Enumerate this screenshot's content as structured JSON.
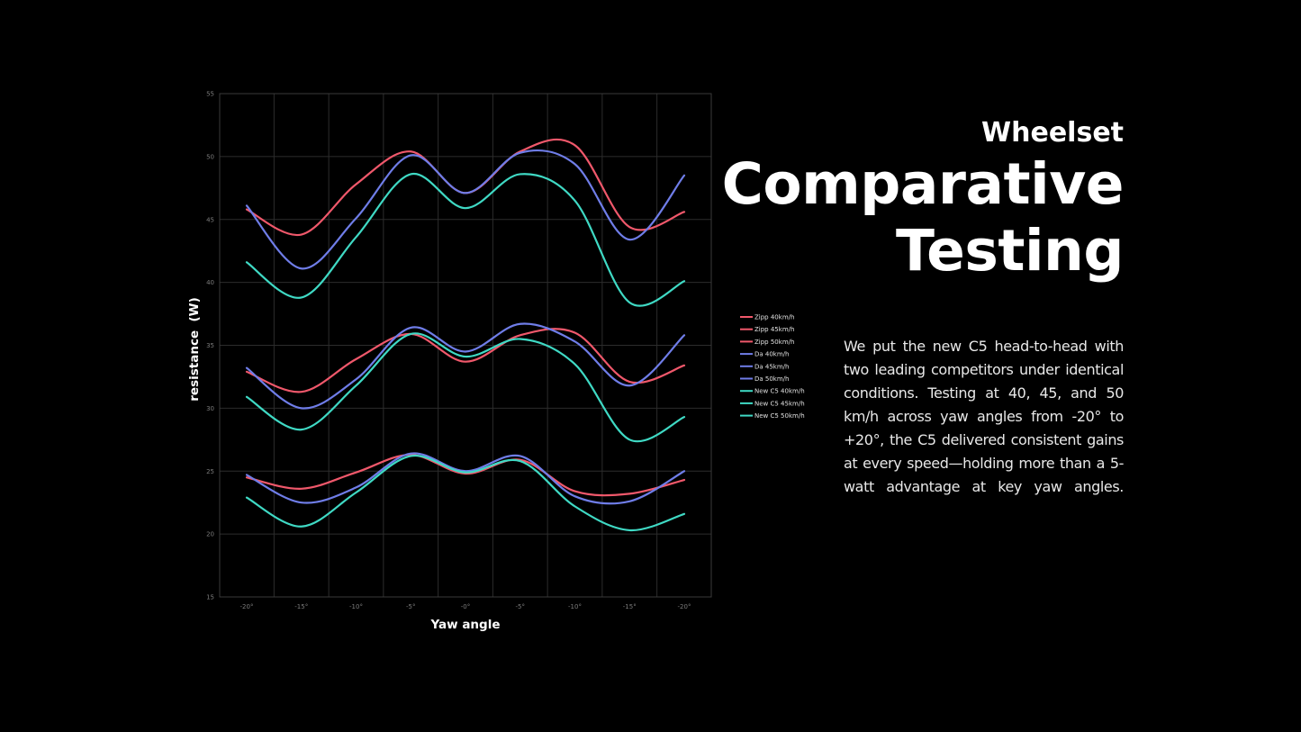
{
  "heading": {
    "subtitle": "Wheelset",
    "title": "Comparative Testing"
  },
  "description": "We put the new C5 head-to-head with two leading competitors under identical conditions. Testing at 40, 45, and 50 km/h across yaw angles from -20° to +20°, the C5 delivered consistent gains at every speed—holding more than a 5-watt advantage at key yaw angles.",
  "colors": {
    "background": "#000000",
    "zipp": "#f0586b",
    "da": "#6f7de8",
    "c5": "#3fd9c4",
    "grid": "#2c2c2c"
  },
  "chart_data": {
    "type": "line",
    "xlabel": "Yaw angle",
    "ylabel": "resistance  (W)",
    "categories": [
      "-20°",
      "-15°",
      "-10°",
      "-5°",
      "-0°",
      "-5°",
      "-10°",
      "-15°",
      "-20°"
    ],
    "ylim": [
      15,
      55
    ],
    "yticks": [
      15,
      20,
      25,
      30,
      35,
      40,
      45,
      50,
      55
    ],
    "grid": true,
    "legend_position": "right",
    "series": [
      {
        "name": "Zipp 40km/h",
        "color": "#f0586b",
        "values": [
          24.5,
          23.6,
          24.9,
          26.3,
          24.8,
          25.9,
          23.4,
          23.2,
          24.3
        ]
      },
      {
        "name": "Zipp 45km/h",
        "color": "#f0586b",
        "values": [
          32.9,
          31.3,
          33.9,
          35.9,
          33.7,
          35.8,
          36.0,
          32.1,
          33.4
        ]
      },
      {
        "name": "Zipp 50km/h",
        "color": "#f0586b",
        "values": [
          45.8,
          43.8,
          47.8,
          50.4,
          47.1,
          50.4,
          50.9,
          44.4,
          45.6
        ]
      },
      {
        "name": "Da 40km/h",
        "color": "#6f7de8",
        "values": [
          24.7,
          22.5,
          23.7,
          26.4,
          25.0,
          26.2,
          23.0,
          22.6,
          25.0
        ]
      },
      {
        "name": "Da 45km/h",
        "color": "#6f7de8",
        "values": [
          33.2,
          30.0,
          32.3,
          36.4,
          34.5,
          36.7,
          35.3,
          31.8,
          35.8
        ]
      },
      {
        "name": "Da 50km/h",
        "color": "#6f7de8",
        "values": [
          46.1,
          41.1,
          45.1,
          50.1,
          47.1,
          50.3,
          49.4,
          43.4,
          48.5
        ]
      },
      {
        "name": "New C5 40km/h",
        "color": "#3fd9c4",
        "values": [
          22.9,
          20.6,
          23.3,
          26.2,
          24.9,
          25.8,
          22.2,
          20.3,
          21.6
        ]
      },
      {
        "name": "New C5 45km/h",
        "color": "#3fd9c4",
        "values": [
          30.9,
          28.3,
          31.8,
          35.9,
          34.1,
          35.5,
          33.5,
          27.5,
          29.3
        ]
      },
      {
        "name": "New C5 50km/h",
        "color": "#3fd9c4",
        "values": [
          41.6,
          38.8,
          43.6,
          48.6,
          45.9,
          48.6,
          46.5,
          38.4,
          40.1
        ]
      }
    ]
  }
}
